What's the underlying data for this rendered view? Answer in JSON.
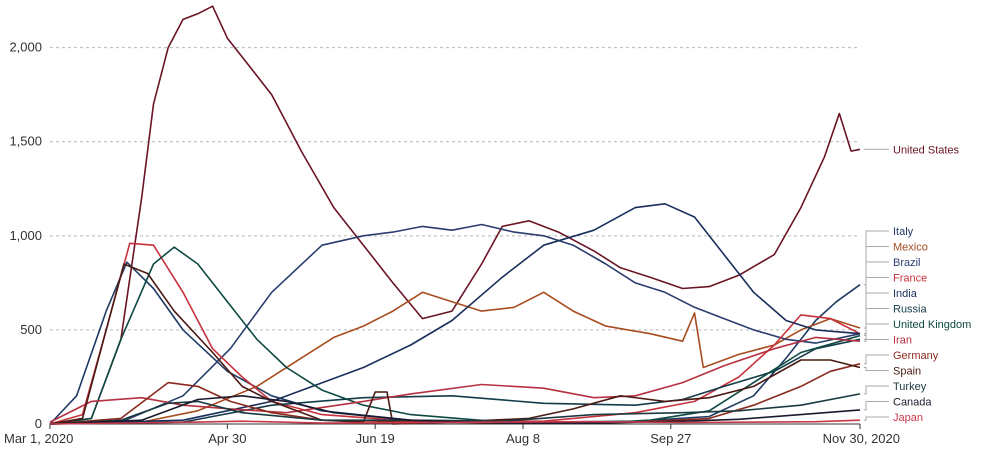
{
  "chart_data": {
    "type": "line",
    "title": "",
    "xlabel": "",
    "ylabel": "",
    "x_range": [
      "2020-03-01",
      "2020-11-30"
    ],
    "ylim": [
      0,
      2200
    ],
    "grid": true,
    "legend_placement": "right",
    "x_ticks": [
      {
        "date": "2020-03-01",
        "label": "Mar 1, 2020"
      },
      {
        "date": "2020-04-30",
        "label": "Apr 30"
      },
      {
        "date": "2020-06-19",
        "label": "Jun 19"
      },
      {
        "date": "2020-08-08",
        "label": "Aug 8"
      },
      {
        "date": "2020-09-27",
        "label": "Sep 27"
      },
      {
        "date": "2020-11-30",
        "label": "Nov 30, 2020"
      }
    ],
    "y_ticks": [
      {
        "value": 0,
        "label": "0"
      },
      {
        "value": 500,
        "label": "500"
      },
      {
        "value": 1000,
        "label": "1,000"
      },
      {
        "value": 1500,
        "label": "1,500"
      },
      {
        "value": 2000,
        "label": "2,000"
      }
    ],
    "series": [
      {
        "name": "United States",
        "color": "#6a1424",
        "values": [
          [
            "2020-03-01",
            0
          ],
          [
            "2020-03-15",
            30
          ],
          [
            "2020-03-25",
            450
          ],
          [
            "2020-04-01",
            1200
          ],
          [
            "2020-04-05",
            1700
          ],
          [
            "2020-04-10",
            2000
          ],
          [
            "2020-04-15",
            2150
          ],
          [
            "2020-04-20",
            2180
          ],
          [
            "2020-04-25",
            2220
          ],
          [
            "2020-04-30",
            2050
          ],
          [
            "2020-05-05",
            1950
          ],
          [
            "2020-05-15",
            1750
          ],
          [
            "2020-05-25",
            1450
          ],
          [
            "2020-06-05",
            1150
          ],
          [
            "2020-06-15",
            950
          ],
          [
            "2020-06-25",
            750
          ],
          [
            "2020-07-05",
            560
          ],
          [
            "2020-07-15",
            600
          ],
          [
            "2020-07-25",
            850
          ],
          [
            "2020-08-01",
            1050
          ],
          [
            "2020-08-10",
            1080
          ],
          [
            "2020-08-20",
            1020
          ],
          [
            "2020-09-01",
            920
          ],
          [
            "2020-09-10",
            830
          ],
          [
            "2020-09-20",
            780
          ],
          [
            "2020-10-01",
            720
          ],
          [
            "2020-10-10",
            730
          ],
          [
            "2020-10-20",
            790
          ],
          [
            "2020-11-01",
            900
          ],
          [
            "2020-11-10",
            1150
          ],
          [
            "2020-11-18",
            1420
          ],
          [
            "2020-11-23",
            1650
          ],
          [
            "2020-11-27",
            1450
          ],
          [
            "2020-11-30",
            1460
          ]
        ]
      },
      {
        "name": "Italy",
        "color": "#1f3b63",
        "values": [
          [
            "2020-03-01",
            0
          ],
          [
            "2020-03-10",
            150
          ],
          [
            "2020-03-20",
            600
          ],
          [
            "2020-03-27",
            860
          ],
          [
            "2020-04-05",
            720
          ],
          [
            "2020-04-15",
            500
          ],
          [
            "2020-04-30",
            280
          ],
          [
            "2020-05-15",
            150
          ],
          [
            "2020-06-01",
            70
          ],
          [
            "2020-07-01",
            20
          ],
          [
            "2020-08-15",
            10
          ],
          [
            "2020-09-15",
            15
          ],
          [
            "2020-10-10",
            40
          ],
          [
            "2020-10-25",
            150
          ],
          [
            "2020-11-05",
            350
          ],
          [
            "2020-11-15",
            550
          ],
          [
            "2020-11-22",
            650
          ],
          [
            "2020-11-30",
            740
          ]
        ]
      },
      {
        "name": "Mexico",
        "color": "#a84c1f",
        "values": [
          [
            "2020-03-01",
            0
          ],
          [
            "2020-04-01",
            10
          ],
          [
            "2020-04-20",
            70
          ],
          [
            "2020-05-10",
            200
          ],
          [
            "2020-05-25",
            350
          ],
          [
            "2020-06-05",
            460
          ],
          [
            "2020-06-15",
            520
          ],
          [
            "2020-06-25",
            600
          ],
          [
            "2020-07-05",
            700
          ],
          [
            "2020-07-15",
            650
          ],
          [
            "2020-07-25",
            600
          ],
          [
            "2020-08-05",
            620
          ],
          [
            "2020-08-15",
            700
          ],
          [
            "2020-08-25",
            600
          ],
          [
            "2020-09-05",
            520
          ],
          [
            "2020-09-20",
            480
          ],
          [
            "2020-10-01",
            440
          ],
          [
            "2020-10-05",
            590
          ],
          [
            "2020-10-08",
            300
          ],
          [
            "2020-10-20",
            370
          ],
          [
            "2020-11-01",
            420
          ],
          [
            "2020-11-10",
            500
          ],
          [
            "2020-11-20",
            560
          ],
          [
            "2020-11-30",
            510
          ]
        ]
      },
      {
        "name": "Brazil",
        "color": "#2a3d6e",
        "values": [
          [
            "2020-03-01",
            0
          ],
          [
            "2020-03-25",
            10
          ],
          [
            "2020-04-15",
            150
          ],
          [
            "2020-05-01",
            400
          ],
          [
            "2020-05-15",
            700
          ],
          [
            "2020-06-01",
            950
          ],
          [
            "2020-06-15",
            1000
          ],
          [
            "2020-06-25",
            1020
          ],
          [
            "2020-07-05",
            1050
          ],
          [
            "2020-07-15",
            1030
          ],
          [
            "2020-07-25",
            1060
          ],
          [
            "2020-08-05",
            1020
          ],
          [
            "2020-08-15",
            1000
          ],
          [
            "2020-08-25",
            950
          ],
          [
            "2020-09-05",
            850
          ],
          [
            "2020-09-15",
            750
          ],
          [
            "2020-09-25",
            700
          ],
          [
            "2020-10-05",
            620
          ],
          [
            "2020-10-15",
            560
          ],
          [
            "2020-10-25",
            500
          ],
          [
            "2020-11-05",
            450
          ],
          [
            "2020-11-15",
            430
          ],
          [
            "2020-11-30",
            480
          ]
        ]
      },
      {
        "name": "France",
        "color": "#c8323c",
        "values": [
          [
            "2020-03-01",
            0
          ],
          [
            "2020-03-12",
            50
          ],
          [
            "2020-03-20",
            500
          ],
          [
            "2020-03-28",
            960
          ],
          [
            "2020-04-05",
            950
          ],
          [
            "2020-04-15",
            700
          ],
          [
            "2020-04-25",
            400
          ],
          [
            "2020-05-05",
            250
          ],
          [
            "2020-05-15",
            120
          ],
          [
            "2020-06-01",
            50
          ],
          [
            "2020-07-01",
            15
          ],
          [
            "2020-08-15",
            15
          ],
          [
            "2020-09-15",
            60
          ],
          [
            "2020-10-05",
            120
          ],
          [
            "2020-10-20",
            250
          ],
          [
            "2020-11-01",
            420
          ],
          [
            "2020-11-10",
            580
          ],
          [
            "2020-11-20",
            560
          ],
          [
            "2020-11-30",
            480
          ]
        ]
      },
      {
        "name": "India",
        "color": "#1a2e5c",
        "values": [
          [
            "2020-03-01",
            0
          ],
          [
            "2020-04-15",
            20
          ],
          [
            "2020-05-15",
            120
          ],
          [
            "2020-06-15",
            300
          ],
          [
            "2020-07-01",
            420
          ],
          [
            "2020-07-15",
            550
          ],
          [
            "2020-08-01",
            780
          ],
          [
            "2020-08-15",
            950
          ],
          [
            "2020-09-01",
            1030
          ],
          [
            "2020-09-15",
            1150
          ],
          [
            "2020-09-25",
            1170
          ],
          [
            "2020-10-05",
            1100
          ],
          [
            "2020-10-15",
            900
          ],
          [
            "2020-10-25",
            700
          ],
          [
            "2020-11-05",
            550
          ],
          [
            "2020-11-15",
            500
          ],
          [
            "2020-11-30",
            480
          ]
        ]
      },
      {
        "name": "Russia",
        "color": "#123c4a",
        "values": [
          [
            "2020-03-01",
            0
          ],
          [
            "2020-04-15",
            10
          ],
          [
            "2020-05-15",
            100
          ],
          [
            "2020-06-15",
            140
          ],
          [
            "2020-07-15",
            150
          ],
          [
            "2020-08-15",
            110
          ],
          [
            "2020-09-15",
            100
          ],
          [
            "2020-10-01",
            130
          ],
          [
            "2020-10-15",
            200
          ],
          [
            "2020-11-01",
            280
          ],
          [
            "2020-11-15",
            400
          ],
          [
            "2020-11-30",
            450
          ]
        ]
      },
      {
        "name": "United Kingdom",
        "color": "#0d4a43",
        "values": [
          [
            "2020-03-01",
            0
          ],
          [
            "2020-03-15",
            30
          ],
          [
            "2020-03-25",
            450
          ],
          [
            "2020-04-05",
            850
          ],
          [
            "2020-04-12",
            940
          ],
          [
            "2020-04-20",
            850
          ],
          [
            "2020-04-30",
            650
          ],
          [
            "2020-05-10",
            450
          ],
          [
            "2020-05-20",
            300
          ],
          [
            "2020-06-01",
            180
          ],
          [
            "2020-06-15",
            100
          ],
          [
            "2020-07-01",
            50
          ],
          [
            "2020-08-01",
            10
          ],
          [
            "2020-09-01",
            5
          ],
          [
            "2020-09-20",
            20
          ],
          [
            "2020-10-10",
            70
          ],
          [
            "2020-10-25",
            220
          ],
          [
            "2020-11-10",
            380
          ],
          [
            "2020-11-30",
            470
          ]
        ]
      },
      {
        "name": "Iran",
        "color": "#b53040",
        "values": [
          [
            "2020-03-01",
            10
          ],
          [
            "2020-03-15",
            120
          ],
          [
            "2020-04-01",
            140
          ],
          [
            "2020-04-15",
            100
          ],
          [
            "2020-05-01",
            80
          ],
          [
            "2020-05-20",
            60
          ],
          [
            "2020-06-15",
            120
          ],
          [
            "2020-07-01",
            160
          ],
          [
            "2020-07-25",
            210
          ],
          [
            "2020-08-15",
            190
          ],
          [
            "2020-09-01",
            140
          ],
          [
            "2020-09-15",
            150
          ],
          [
            "2020-10-01",
            220
          ],
          [
            "2020-10-15",
            310
          ],
          [
            "2020-11-01",
            400
          ],
          [
            "2020-11-15",
            460
          ],
          [
            "2020-11-30",
            440
          ]
        ]
      },
      {
        "name": "Germany",
        "color": "#8a2a1e",
        "values": [
          [
            "2020-03-01",
            0
          ],
          [
            "2020-03-25",
            30
          ],
          [
            "2020-04-10",
            220
          ],
          [
            "2020-04-20",
            200
          ],
          [
            "2020-05-01",
            120
          ],
          [
            "2020-05-15",
            60
          ],
          [
            "2020-06-01",
            20
          ],
          [
            "2020-08-01",
            5
          ],
          [
            "2020-09-15",
            10
          ],
          [
            "2020-10-10",
            30
          ],
          [
            "2020-10-25",
            100
          ],
          [
            "2020-11-10",
            200
          ],
          [
            "2020-11-20",
            280
          ],
          [
            "2020-11-30",
            320
          ]
        ]
      },
      {
        "name": "Spain",
        "color": "#4a1a14",
        "values": [
          [
            "2020-03-01",
            0
          ],
          [
            "2020-03-12",
            30
          ],
          [
            "2020-03-20",
            500
          ],
          [
            "2020-03-26",
            850
          ],
          [
            "2020-04-03",
            800
          ],
          [
            "2020-04-12",
            600
          ],
          [
            "2020-04-25",
            380
          ],
          [
            "2020-05-05",
            200
          ],
          [
            "2020-05-15",
            120
          ],
          [
            "2020-06-01",
            20
          ],
          [
            "2020-06-15",
            10
          ],
          [
            "2020-06-19",
            170
          ],
          [
            "2020-06-23",
            170
          ],
          [
            "2020-06-25",
            0
          ],
          [
            "2020-07-15",
            10
          ],
          [
            "2020-08-10",
            30
          ],
          [
            "2020-08-25",
            80
          ],
          [
            "2020-09-10",
            150
          ],
          [
            "2020-09-25",
            120
          ],
          [
            "2020-10-10",
            140
          ],
          [
            "2020-10-25",
            200
          ],
          [
            "2020-11-10",
            340
          ],
          [
            "2020-11-20",
            340
          ],
          [
            "2020-11-30",
            300
          ]
        ]
      },
      {
        "name": "Turkey",
        "color": "#1b3a40",
        "values": [
          [
            "2020-03-01",
            0
          ],
          [
            "2020-03-25",
            20
          ],
          [
            "2020-04-10",
            110
          ],
          [
            "2020-04-20",
            120
          ],
          [
            "2020-05-05",
            60
          ],
          [
            "2020-06-01",
            20
          ],
          [
            "2020-07-01",
            20
          ],
          [
            "2020-08-01",
            15
          ],
          [
            "2020-09-01",
            50
          ],
          [
            "2020-10-01",
            60
          ],
          [
            "2020-10-20",
            70
          ],
          [
            "2020-11-10",
            100
          ],
          [
            "2020-11-30",
            160
          ]
        ]
      },
      {
        "name": "Canada",
        "color": "#1a1a2e",
        "values": [
          [
            "2020-03-01",
            0
          ],
          [
            "2020-04-01",
            20
          ],
          [
            "2020-04-20",
            130
          ],
          [
            "2020-05-05",
            150
          ],
          [
            "2020-05-20",
            120
          ],
          [
            "2020-06-05",
            60
          ],
          [
            "2020-07-01",
            20
          ],
          [
            "2020-08-01",
            5
          ],
          [
            "2020-09-01",
            5
          ],
          [
            "2020-10-01",
            15
          ],
          [
            "2020-10-20",
            25
          ],
          [
            "2020-11-10",
            50
          ],
          [
            "2020-11-30",
            75
          ]
        ]
      },
      {
        "name": "Japan",
        "color": "#c8384a",
        "values": [
          [
            "2020-03-01",
            0
          ],
          [
            "2020-04-20",
            10
          ],
          [
            "2020-05-05",
            15
          ],
          [
            "2020-06-01",
            5
          ],
          [
            "2020-08-01",
            10
          ],
          [
            "2020-09-01",
            12
          ],
          [
            "2020-10-01",
            8
          ],
          [
            "2020-11-15",
            12
          ],
          [
            "2020-11-30",
            20
          ]
        ]
      }
    ]
  }
}
